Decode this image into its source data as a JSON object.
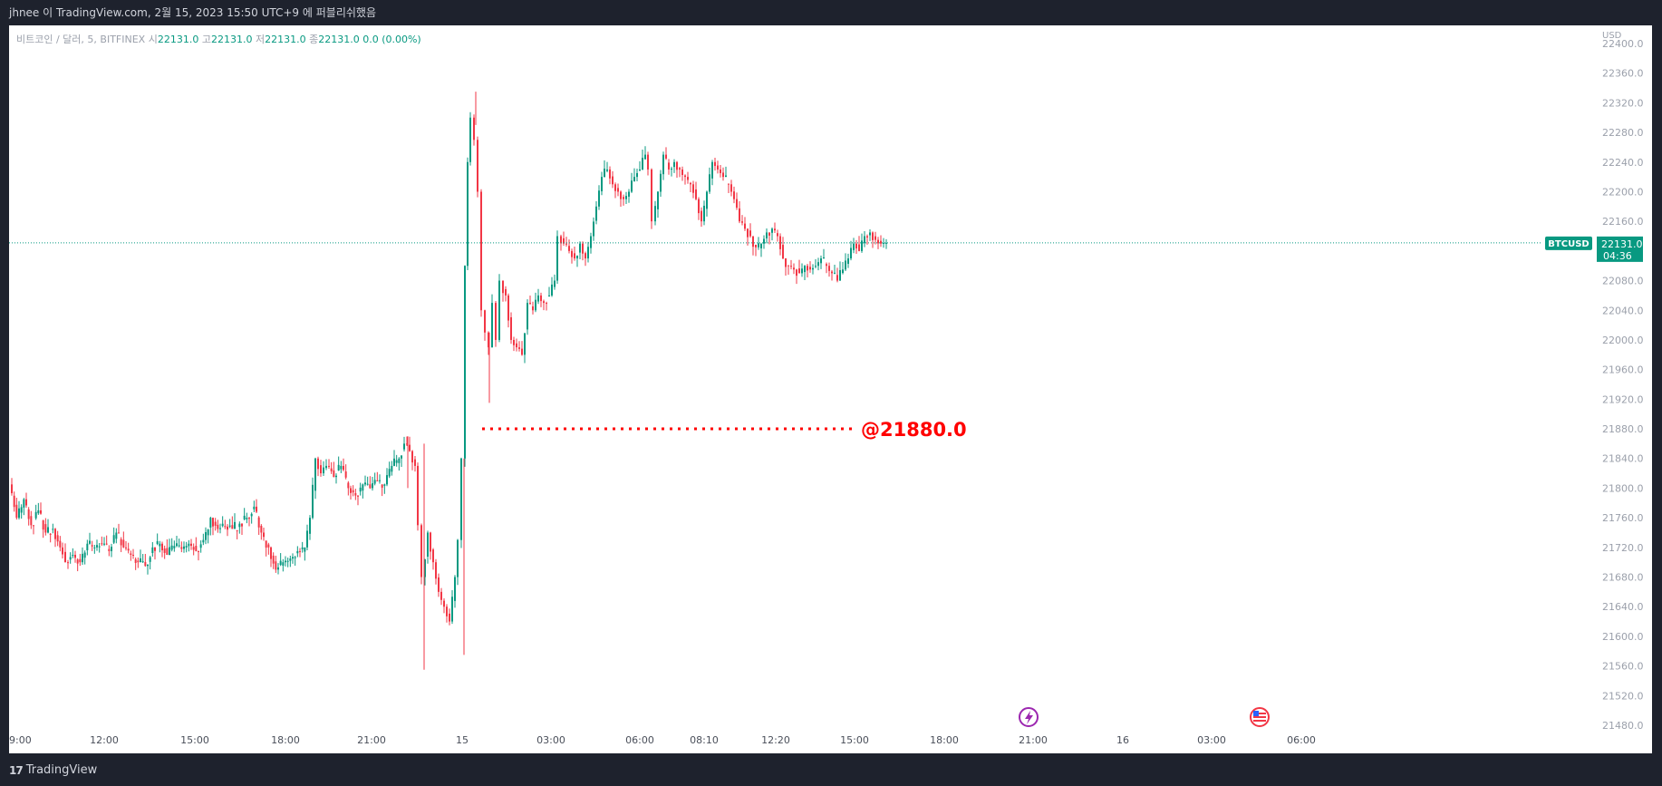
{
  "header": {
    "text": "jhnee 이 TradingView.com, 2월 15, 2023 15:50 UTC+9 에 퍼블리쉬했음"
  },
  "legend": {
    "symbol": "비트코인 / 달러, 5, BITFINEX",
    "open_label": "시",
    "open": "22131.0",
    "high_label": "고",
    "high": "22131.0",
    "low_label": "저",
    "low": "22131.0",
    "close_label": "종",
    "close": "22131.0",
    "change": "0.0 (0.00%)"
  },
  "footer": {
    "brand": "TradingView"
  },
  "colors": {
    "up": "#089981",
    "down": "#f23645",
    "annotation": "#ff0000",
    "price_tag": "#089981"
  },
  "chart_data": {
    "type": "candlestick",
    "currency_label": "USD",
    "y_ticks": [
      22400,
      22360,
      22320,
      22280,
      22240,
      22200,
      22160,
      22080,
      22040,
      22000,
      21960,
      21920,
      21880,
      21840,
      21800,
      21760,
      21720,
      21680,
      21640,
      21600,
      21560,
      21520,
      21480
    ],
    "ylim": [
      21480,
      22400
    ],
    "x_ticks": [
      "9:00",
      "12:00",
      "15:00",
      "18:00",
      "21:00",
      "15",
      "03:00",
      "06:00",
      "08:10",
      "12:20",
      "15:00",
      "18:00",
      "21:00",
      "16",
      "03:00",
      "06:00"
    ],
    "last_price": {
      "symbol": "BTCUSD",
      "price": "22131.0",
      "countdown": "04:36",
      "value": 22131
    },
    "annotation": {
      "text": "@21880.0",
      "value": 21880
    },
    "price_path": [
      [
        0,
        21805
      ],
      [
        8,
        21760
      ],
      [
        16,
        21785
      ],
      [
        24,
        21750
      ],
      [
        32,
        21770
      ],
      [
        40,
        21740
      ],
      [
        48,
        21745
      ],
      [
        56,
        21720
      ],
      [
        62,
        21700
      ],
      [
        70,
        21710
      ],
      [
        78,
        21700
      ],
      [
        86,
        21725
      ],
      [
        94,
        21720
      ],
      [
        102,
        21725
      ],
      [
        110,
        21715
      ],
      [
        118,
        21740
      ],
      [
        126,
        21720
      ],
      [
        134,
        21710
      ],
      [
        142,
        21700
      ],
      [
        150,
        21695
      ],
      [
        158,
        21720
      ],
      [
        166,
        21725
      ],
      [
        174,
        21710
      ],
      [
        182,
        21722
      ],
      [
        190,
        21718
      ],
      [
        198,
        21725
      ],
      [
        206,
        21715
      ],
      [
        214,
        21730
      ],
      [
        222,
        21760
      ],
      [
        230,
        21745
      ],
      [
        238,
        21748
      ],
      [
        246,
        21745
      ],
      [
        254,
        21752
      ],
      [
        262,
        21760
      ],
      [
        270,
        21775
      ],
      [
        278,
        21740
      ],
      [
        286,
        21720
      ],
      [
        294,
        21690
      ],
      [
        302,
        21700
      ],
      [
        310,
        21705
      ],
      [
        318,
        21715
      ],
      [
        326,
        21720
      ],
      [
        332,
        21760
      ],
      [
        338,
        21840
      ],
      [
        344,
        21820
      ],
      [
        350,
        21830
      ],
      [
        358,
        21815
      ],
      [
        366,
        21830
      ],
      [
        374,
        21800
      ],
      [
        382,
        21790
      ],
      [
        390,
        21805
      ],
      [
        398,
        21800
      ],
      [
        406,
        21810
      ],
      [
        414,
        21805
      ],
      [
        422,
        21830
      ],
      [
        430,
        21840
      ],
      [
        436,
        21860
      ],
      [
        442,
        21850
      ],
      [
        448,
        21830
      ],
      [
        452,
        21750
      ],
      [
        456,
        21680
      ],
      [
        462,
        21740
      ],
      [
        468,
        21700
      ],
      [
        474,
        21660
      ],
      [
        480,
        21640
      ],
      [
        486,
        21620
      ],
      [
        492,
        21680
      ],
      [
        496,
        21730
      ],
      [
        500,
        21840
      ],
      [
        503,
        22100
      ],
      [
        506,
        22240
      ],
      [
        510,
        22300
      ],
      [
        514,
        22270
      ],
      [
        518,
        22200
      ],
      [
        522,
        22040
      ],
      [
        526,
        22010
      ],
      [
        530,
        21990
      ],
      [
        534,
        22050
      ],
      [
        538,
        22000
      ],
      [
        542,
        22080
      ],
      [
        548,
        22060
      ],
      [
        554,
        22000
      ],
      [
        560,
        21990
      ],
      [
        566,
        21980
      ],
      [
        572,
        22050
      ],
      [
        578,
        22040
      ],
      [
        584,
        22060
      ],
      [
        590,
        22050
      ],
      [
        596,
        22060
      ],
      [
        602,
        22080
      ],
      [
        606,
        22140
      ],
      [
        612,
        22130
      ],
      [
        618,
        22120
      ],
      [
        624,
        22110
      ],
      [
        630,
        22130
      ],
      [
        636,
        22110
      ],
      [
        642,
        22140
      ],
      [
        648,
        22180
      ],
      [
        654,
        22220
      ],
      [
        660,
        22230
      ],
      [
        666,
        22210
      ],
      [
        672,
        22200
      ],
      [
        678,
        22190
      ],
      [
        684,
        22200
      ],
      [
        690,
        22220
      ],
      [
        696,
        22230
      ],
      [
        702,
        22250
      ],
      [
        706,
        22230
      ],
      [
        710,
        22160
      ],
      [
        716,
        22200
      ],
      [
        722,
        22250
      ],
      [
        728,
        22230
      ],
      [
        734,
        22240
      ],
      [
        740,
        22230
      ],
      [
        746,
        22220
      ],
      [
        752,
        22210
      ],
      [
        758,
        22190
      ],
      [
        764,
        22160
      ],
      [
        770,
        22200
      ],
      [
        776,
        22240
      ],
      [
        782,
        22230
      ],
      [
        788,
        22220
      ],
      [
        794,
        22210
      ],
      [
        800,
        22190
      ],
      [
        806,
        22160
      ],
      [
        812,
        22150
      ],
      [
        818,
        22140
      ],
      [
        824,
        22125
      ],
      [
        830,
        22130
      ],
      [
        836,
        22145
      ],
      [
        842,
        22150
      ],
      [
        848,
        22140
      ],
      [
        854,
        22110
      ],
      [
        860,
        22100
      ],
      [
        866,
        22095
      ],
      [
        872,
        22090
      ],
      [
        878,
        22100
      ],
      [
        884,
        22095
      ],
      [
        890,
        22100
      ],
      [
        896,
        22110
      ],
      [
        902,
        22100
      ],
      [
        908,
        22090
      ],
      [
        914,
        22080
      ],
      [
        920,
        22095
      ],
      [
        926,
        22110
      ],
      [
        932,
        22130
      ],
      [
        938,
        22120
      ],
      [
        944,
        22140
      ],
      [
        950,
        22145
      ],
      [
        956,
        22135
      ],
      [
        962,
        22130
      ],
      [
        968,
        22131
      ]
    ]
  }
}
